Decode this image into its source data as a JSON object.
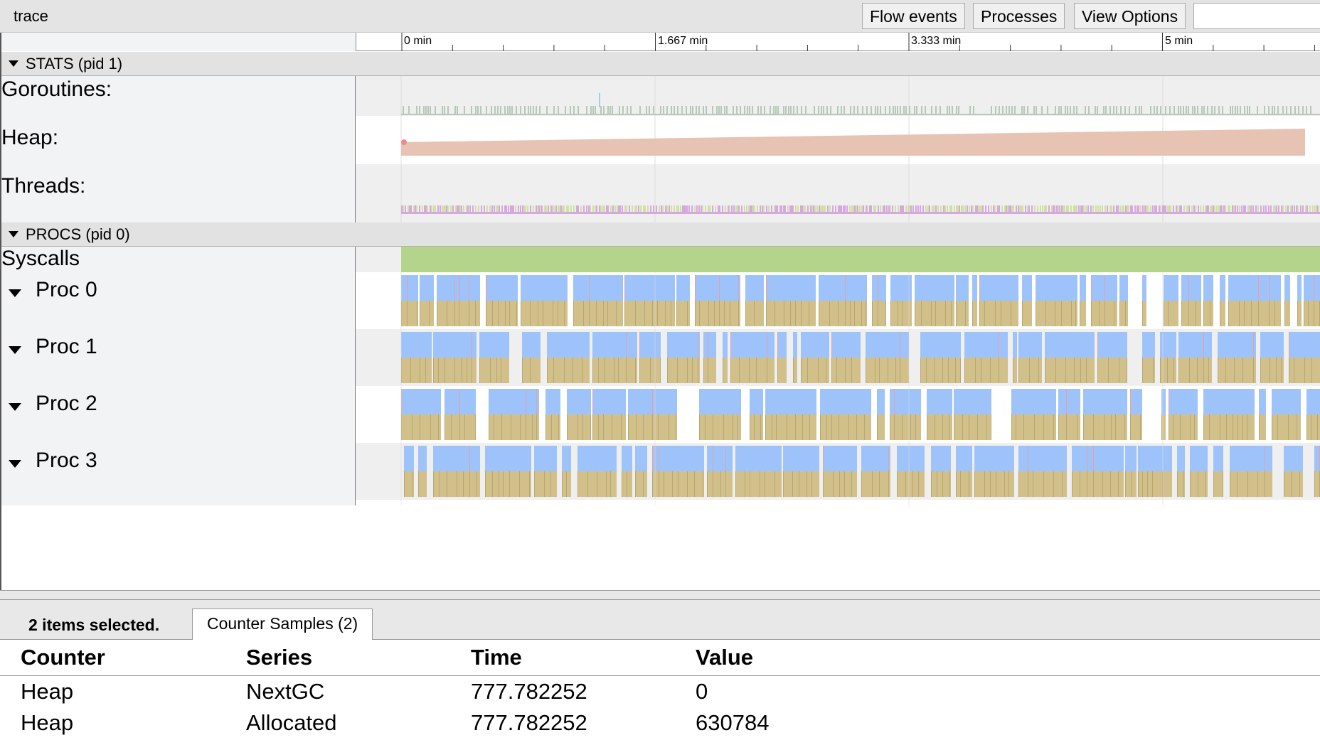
{
  "title": "trace",
  "toolbar": {
    "flow_events": "Flow events",
    "processes": "Processes",
    "view_options": "View Options"
  },
  "ruler": {
    "ticks": [
      "0 min",
      "1.667 min",
      "3.333 min",
      "5 min"
    ]
  },
  "stats": {
    "header": "STATS (pid 1)",
    "goroutines": "Goroutines:",
    "heap": "Heap:",
    "threads": "Threads:"
  },
  "procs": {
    "header": "PROCS (pid 0)",
    "syscalls": "Syscalls",
    "proc_labels": [
      "Proc 0",
      "Proc 1",
      "Proc 2",
      "Proc 3"
    ]
  },
  "colors": {
    "goroutines": "#b6c9b8",
    "heap": "#e6c3b2",
    "threads_a": "#cfe1a6",
    "threads_b": "#d7a8e0",
    "syscalls": "#b5d48b",
    "proc_top": "#9ec3fa",
    "proc_bottom": "#d2c08b",
    "proc_accent": "#e8a0a0"
  },
  "bottom": {
    "selected": "2 items selected.",
    "tab": "Counter Samples (2)",
    "columns": [
      "Counter",
      "Series",
      "Time",
      "Value"
    ],
    "rows": [
      [
        "Heap",
        "NextGC",
        "777.782252",
        "0"
      ],
      [
        "Heap",
        "Allocated",
        "777.782252",
        "630784"
      ]
    ]
  }
}
